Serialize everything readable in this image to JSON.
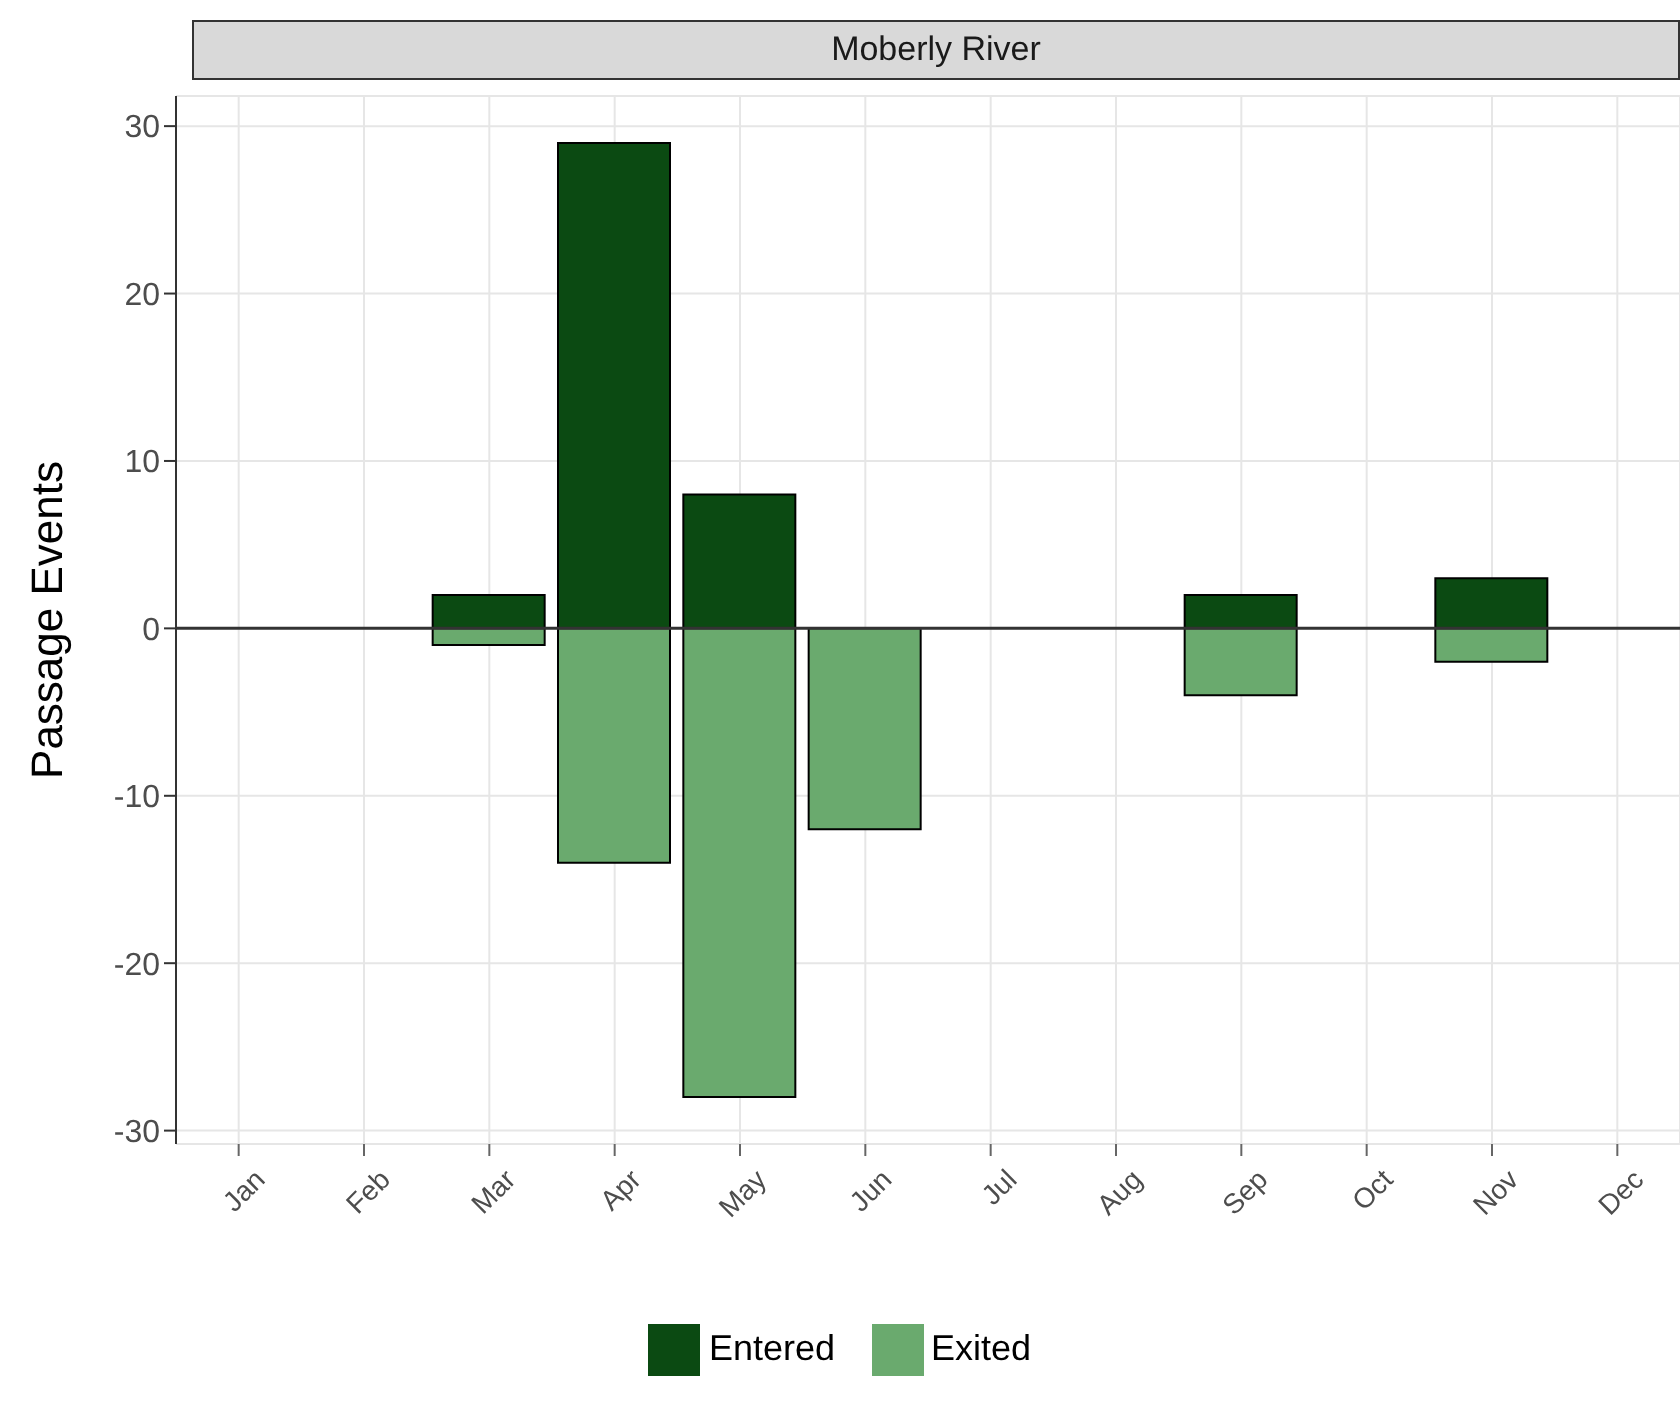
{
  "chart_data": {
    "type": "bar",
    "title": "Moberly River",
    "ylabel": "Passage Events",
    "categories": [
      "Jan",
      "Feb",
      "Mar",
      "Apr",
      "May",
      "Jun",
      "Jul",
      "Aug",
      "Sep",
      "Oct",
      "Nov",
      "Dec"
    ],
    "series": [
      {
        "name": "Entered",
        "color": "#0b4a12",
        "values": [
          0,
          0,
          2,
          29,
          8,
          0,
          0,
          0,
          2,
          0,
          3,
          0
        ]
      },
      {
        "name": "Exited",
        "color": "#6aaa6e",
        "values": [
          0,
          0,
          -1,
          -14,
          -28,
          -12,
          0,
          0,
          -4,
          0,
          -2,
          0
        ]
      }
    ],
    "stacked": true,
    "ylim": [
      -30.8,
      31.8
    ],
    "yticks": [
      -30,
      -20,
      -10,
      0,
      10,
      20,
      30
    ],
    "ref_lines": [
      {
        "axis": "y",
        "value": 0,
        "color": "#333333"
      }
    ],
    "grid": true,
    "legend": "bottom"
  }
}
